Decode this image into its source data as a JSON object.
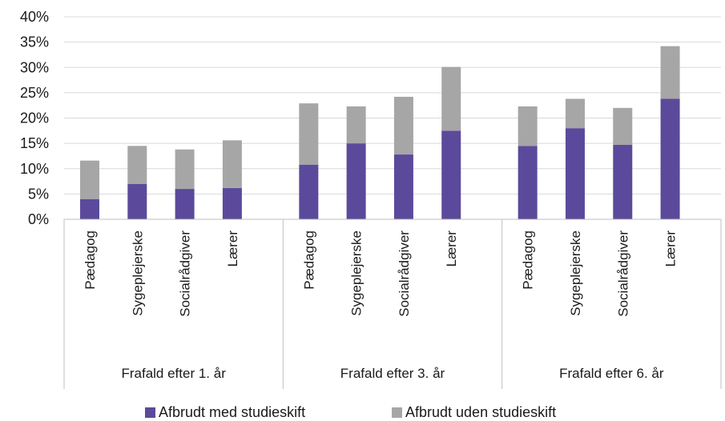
{
  "chart_data": {
    "type": "bar",
    "stacked": true,
    "title": "",
    "xlabel": "",
    "ylabel": "",
    "ylim": [
      0,
      40
    ],
    "y_ticks": [
      "0%",
      "5%",
      "10%",
      "15%",
      "20%",
      "25%",
      "30%",
      "35%",
      "40%"
    ],
    "grid": true,
    "legend_position": "bottom",
    "groups": [
      {
        "label": "Frafald efter 1. år",
        "categories": [
          "Pædagog",
          "Sygeplejerske",
          "Socialrådgiver",
          "Lærer"
        ]
      },
      {
        "label": "Frafald efter 3. år",
        "categories": [
          "Pædagog",
          "Sygeplejerske",
          "Socialrådgiver",
          "Lærer"
        ]
      },
      {
        "label": "Frafald efter 6. år",
        "categories": [
          "Pædagog",
          "Sygeplejerske",
          "Socialrådgiver",
          "Lærer"
        ]
      }
    ],
    "series": [
      {
        "name": "Afbrudt med studieskift",
        "color": "#5b4a9b",
        "values": [
          4.0,
          7.0,
          6.0,
          6.2,
          10.8,
          15.0,
          12.8,
          17.5,
          14.5,
          18.0,
          14.7,
          23.8
        ]
      },
      {
        "name": "Afbrudt uden studieskift",
        "color": "#a6a6a6",
        "values": [
          7.6,
          7.5,
          7.8,
          9.4,
          12.1,
          7.3,
          11.4,
          12.6,
          7.8,
          5.8,
          7.3,
          10.4
        ]
      }
    ]
  }
}
